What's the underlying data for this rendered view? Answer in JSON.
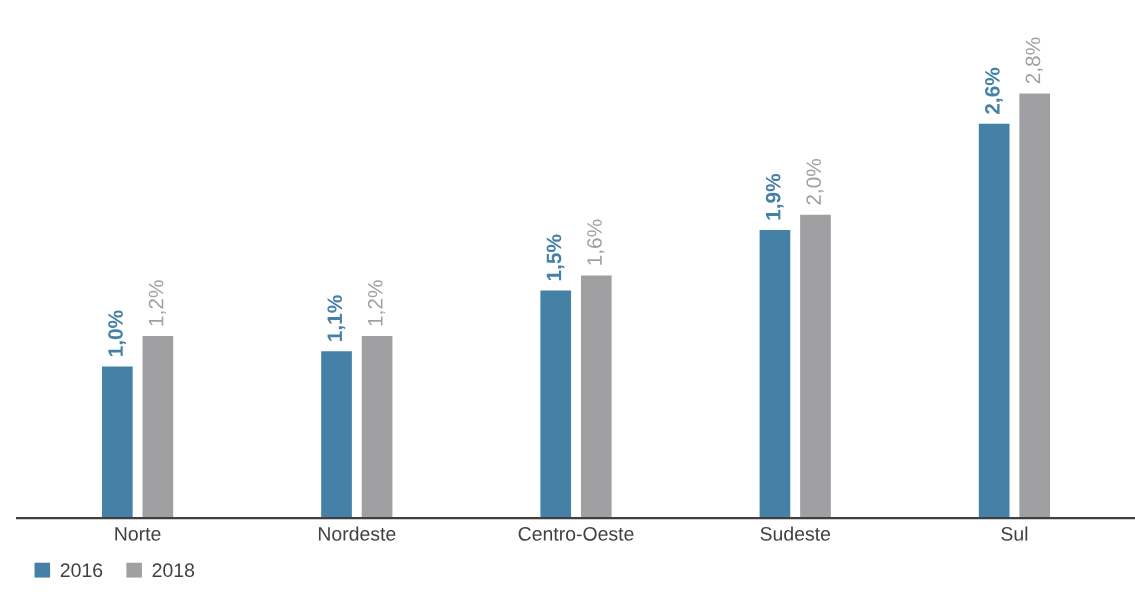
{
  "chart_data": {
    "type": "bar",
    "categories": [
      "Norte",
      "Nordeste",
      "Centro-Oeste",
      "Sudeste",
      "Sul"
    ],
    "series": [
      {
        "name": "2016",
        "color": "#4580a6",
        "values": [
          1.0,
          1.1,
          1.5,
          1.9,
          2.6
        ],
        "value_labels": [
          "1,0%",
          "1,1%",
          "1,5%",
          "1,9%",
          "2,6%"
        ]
      },
      {
        "name": "2018",
        "color": "#a0a0a2",
        "values": [
          1.2,
          1.2,
          1.6,
          2.0,
          2.8
        ],
        "value_labels": [
          "1,2%",
          "1,2%",
          "1,6%",
          "2,0%",
          "2,8%"
        ]
      }
    ],
    "legend": "bottom left",
    "grid": false,
    "tick_labels": "x"
  }
}
